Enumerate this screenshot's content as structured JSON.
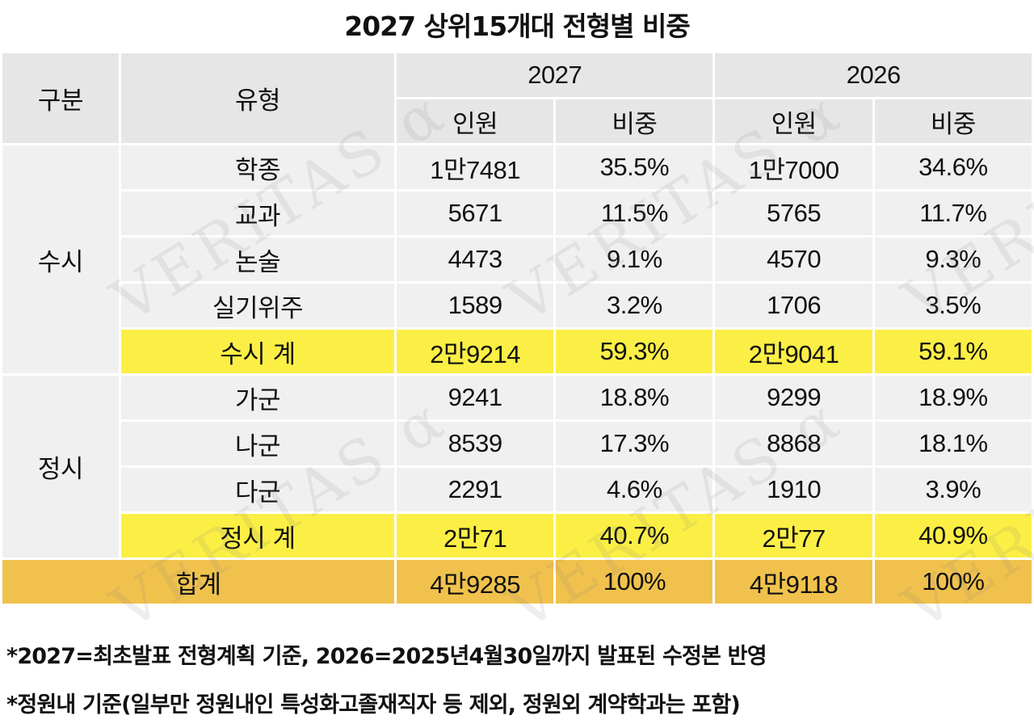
{
  "title": "2027 상위15개대 전형별 비중",
  "header": {
    "category": "구분",
    "type": "유형",
    "year_a": "2027",
    "year_b": "2026",
    "count": "인원",
    "share": "비중"
  },
  "susi": {
    "label": "수시",
    "rows": [
      {
        "type": "학종",
        "a_count": "1만7481",
        "a_share": "35.5%",
        "b_count": "1만7000",
        "b_share": "34.6%"
      },
      {
        "type": "교과",
        "a_count": "5671",
        "a_share": "11.5%",
        "b_count": "5765",
        "b_share": "11.7%"
      },
      {
        "type": "논술",
        "a_count": "4473",
        "a_share": "9.1%",
        "b_count": "4570",
        "b_share": "9.3%"
      },
      {
        "type": "실기위주",
        "a_count": "1589",
        "a_share": "3.2%",
        "b_count": "1706",
        "b_share": "3.5%"
      }
    ],
    "subtotal": {
      "type": "수시 계",
      "a_count": "2만9214",
      "a_share": "59.3%",
      "b_count": "2만9041",
      "b_share": "59.1%"
    }
  },
  "jeongsi": {
    "label": "정시",
    "rows": [
      {
        "type": "가군",
        "a_count": "9241",
        "a_share": "18.8%",
        "b_count": "9299",
        "b_share": "18.9%"
      },
      {
        "type": "나군",
        "a_count": "8539",
        "a_share": "17.3%",
        "b_count": "8868",
        "b_share": "18.1%"
      },
      {
        "type": "다군",
        "a_count": "2291",
        "a_share": "4.6%",
        "b_count": "1910",
        "b_share": "3.9%"
      }
    ],
    "subtotal": {
      "type": "정시 계",
      "a_count": "2만71",
      "a_share": "40.7%",
      "b_count": "2만77",
      "b_share": "40.9%"
    }
  },
  "total": {
    "type": "합계",
    "a_count": "4만9285",
    "a_share": "100%",
    "b_count": "4만9118",
    "b_share": "100%"
  },
  "notes": [
    "*2027=최초발표 전형계획 기준, 2026=2025년4월30일까지 발표된 수정본 반영",
    "*정원내 기준(일부만 정원내인 특성화고졸재직자 등 제외, 정원외 계약학과는 포함)"
  ],
  "watermark": "VERITAS α",
  "colors": {
    "header_bg": "#e6e6e6",
    "cell_bg": "#f0f0f0",
    "subtotal_bg": "#fbef46",
    "total_bg": "#f0c24d"
  }
}
